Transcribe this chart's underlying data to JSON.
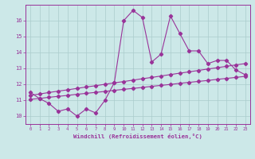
{
  "xlabel": "Windchill (Refroidissement éolien,°C)",
  "xlim": [
    -0.5,
    23.5
  ],
  "ylim": [
    9.5,
    17.0
  ],
  "yticks": [
    10,
    11,
    12,
    13,
    14,
    15,
    16
  ],
  "xticks": [
    0,
    1,
    2,
    3,
    4,
    5,
    6,
    7,
    8,
    9,
    10,
    11,
    12,
    13,
    14,
    15,
    16,
    17,
    18,
    19,
    20,
    21,
    22,
    23
  ],
  "bg_color": "#cce8e8",
  "line_color": "#993399",
  "grid_color": "#aacccc",
  "line1_x": [
    0,
    1,
    2,
    3,
    4,
    5,
    6,
    7,
    8,
    9,
    10,
    11,
    12,
    13,
    14,
    15,
    16,
    17,
    18,
    19,
    20,
    21,
    22,
    23
  ],
  "line1_y": [
    11.5,
    11.1,
    10.8,
    10.3,
    10.45,
    10.0,
    10.45,
    10.2,
    11.0,
    12.1,
    16.0,
    16.65,
    16.2,
    13.4,
    13.9,
    16.3,
    15.2,
    14.1,
    14.1,
    13.3,
    13.5,
    13.5,
    12.9,
    12.6
  ],
  "line2_x": [
    0,
    1,
    2,
    3,
    4,
    5,
    6,
    7,
    8,
    9,
    10,
    11,
    12,
    13,
    14,
    15,
    16,
    17,
    18,
    19,
    20,
    21,
    22,
    23
  ],
  "line2_y": [
    11.05,
    11.11,
    11.18,
    11.24,
    11.3,
    11.37,
    11.43,
    11.49,
    11.55,
    11.62,
    11.68,
    11.74,
    11.8,
    11.87,
    11.93,
    11.99,
    12.06,
    12.12,
    12.18,
    12.24,
    12.31,
    12.37,
    12.43,
    12.5
  ],
  "line3_x": [
    0,
    1,
    2,
    3,
    4,
    5,
    6,
    7,
    8,
    9,
    10,
    11,
    12,
    13,
    14,
    15,
    16,
    17,
    18,
    19,
    20,
    21,
    22,
    23
  ],
  "line3_y": [
    11.3,
    11.39,
    11.48,
    11.57,
    11.65,
    11.74,
    11.83,
    11.91,
    12.0,
    12.09,
    12.17,
    12.26,
    12.35,
    12.43,
    12.52,
    12.61,
    12.7,
    12.78,
    12.87,
    12.96,
    13.04,
    13.13,
    13.22,
    13.3
  ]
}
